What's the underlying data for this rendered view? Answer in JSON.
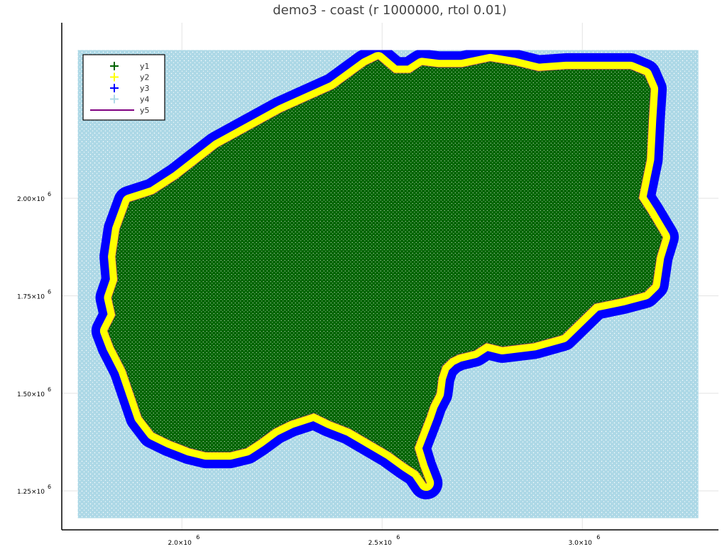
{
  "chart_data": {
    "type": "scatter",
    "title": "demo3 - coast (r 1000000, rtol 0.01)",
    "xlabel": "",
    "ylabel": "",
    "x_ticks": [
      {
        "value": 2000000,
        "label": "2.0×10",
        "exp": "6"
      },
      {
        "value": 2500000,
        "label": "2.5×10",
        "exp": "6"
      },
      {
        "value": 3000000,
        "label": "3.0×10",
        "exp": "6"
      }
    ],
    "y_ticks": [
      {
        "value": 1250000,
        "label": "1.25×10",
        "exp": "6"
      },
      {
        "value": 1500000,
        "label": "1.50×10",
        "exp": "6"
      },
      {
        "value": 1750000,
        "label": "1.75×10",
        "exp": "6"
      },
      {
        "value": 2000000,
        "label": "2.00×10",
        "exp": "6"
      }
    ],
    "xlim": [
      1700000,
      3340000
    ],
    "ylim": [
      1150000,
      2450000
    ],
    "grid": true,
    "legend_position": "top-left",
    "domain_x": [
      1740000,
      3290000
    ],
    "domain_y": [
      1180000,
      2380000
    ],
    "coast_outline": [
      [
        1830000,
        1620000
      ],
      [
        1815000,
        1660000
      ],
      [
        1835000,
        1700000
      ],
      [
        1825000,
        1745000
      ],
      [
        1840000,
        1790000
      ],
      [
        1835000,
        1850000
      ],
      [
        1845000,
        1920000
      ],
      [
        1870000,
        1990000
      ],
      [
        1900000,
        2000000
      ],
      [
        1930000,
        2010000
      ],
      [
        1990000,
        2050000
      ],
      [
        2090000,
        2130000
      ],
      [
        2250000,
        2220000
      ],
      [
        2380000,
        2280000
      ],
      [
        2460000,
        2340000
      ],
      [
        2490000,
        2355000
      ],
      [
        2530000,
        2320000
      ],
      [
        2570000,
        2320000
      ],
      [
        2600000,
        2340000
      ],
      [
        2640000,
        2335000
      ],
      [
        2700000,
        2335000
      ],
      [
        2770000,
        2350000
      ],
      [
        2830000,
        2340000
      ],
      [
        2890000,
        2325000
      ],
      [
        2960000,
        2330000
      ],
      [
        3050000,
        2330000
      ],
      [
        3120000,
        2330000
      ],
      [
        3155000,
        2315000
      ],
      [
        3170000,
        2280000
      ],
      [
        3165000,
        2200000
      ],
      [
        3160000,
        2100000
      ],
      [
        3150000,
        2050000
      ],
      [
        3140000,
        2000000
      ],
      [
        3165000,
        1960000
      ],
      [
        3200000,
        1900000
      ],
      [
        3185000,
        1850000
      ],
      [
        3175000,
        1780000
      ],
      [
        3155000,
        1760000
      ],
      [
        3100000,
        1745000
      ],
      [
        3030000,
        1730000
      ],
      [
        2990000,
        1690000
      ],
      [
        2950000,
        1650000
      ],
      [
        2880000,
        1630000
      ],
      [
        2800000,
        1620000
      ],
      [
        2760000,
        1630000
      ],
      [
        2730000,
        1610000
      ],
      [
        2690000,
        1600000
      ],
      [
        2670000,
        1590000
      ],
      [
        2650000,
        1570000
      ],
      [
        2640000,
        1540000
      ],
      [
        2635000,
        1500000
      ],
      [
        2620000,
        1470000
      ],
      [
        2610000,
        1440000
      ],
      [
        2595000,
        1400000
      ],
      [
        2580000,
        1360000
      ],
      [
        2595000,
        1310000
      ],
      [
        2610000,
        1270000
      ],
      [
        2590000,
        1300000
      ],
      [
        2560000,
        1320000
      ],
      [
        2520000,
        1350000
      ],
      [
        2470000,
        1380000
      ],
      [
        2420000,
        1410000
      ],
      [
        2370000,
        1430000
      ],
      [
        2330000,
        1450000
      ],
      [
        2270000,
        1430000
      ],
      [
        2230000,
        1410000
      ],
      [
        2190000,
        1380000
      ],
      [
        2160000,
        1360000
      ],
      [
        2120000,
        1350000
      ],
      [
        2060000,
        1350000
      ],
      [
        2020000,
        1360000
      ],
      [
        1970000,
        1380000
      ],
      [
        1930000,
        1400000
      ],
      [
        1900000,
        1440000
      ],
      [
        1880000,
        1500000
      ],
      [
        1860000,
        1560000
      ],
      [
        1840000,
        1600000
      ]
    ],
    "series": [
      {
        "name": "y1",
        "marker": "+",
        "color": "#006400",
        "role": "interior"
      },
      {
        "name": "y2",
        "marker": "+",
        "color": "#ffff00",
        "role": "coast band"
      },
      {
        "name": "y3",
        "marker": "+",
        "color": "#0000ff",
        "role": "outer band"
      },
      {
        "name": "y4",
        "marker": "+",
        "color": "#add8e6",
        "role": "sea"
      },
      {
        "name": "y5",
        "marker": "line",
        "color": "#800080",
        "role": "coastline"
      }
    ]
  }
}
